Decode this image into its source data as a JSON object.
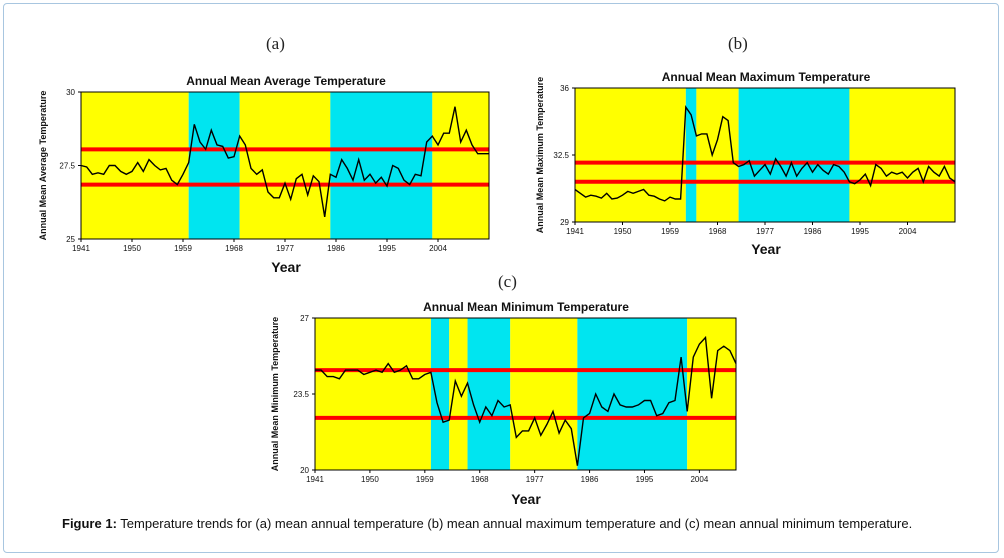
{
  "panel_labels": [
    "(a)",
    "(b)",
    "(c)"
  ],
  "caption": {
    "prefix": "Figure 1:",
    "text": " Temperature trends for (a) mean annual temperature (b) mean annual maximum temperature and (c) mean annual minimum temperature."
  },
  "colors": {
    "band_yellow": "#ffff00",
    "band_cyan": "#00e5f0",
    "mean_line": "#ff0000",
    "series_line": "#000000"
  },
  "chart_data": [
    {
      "type": "line",
      "title": "Annual Mean Average Temperature",
      "xlabel": "Year",
      "ylabel": "Annual Mean Average Temperature",
      "x_ticks": [
        "1941",
        "1950",
        "1959",
        "1968",
        "1977",
        "1986",
        "1995",
        "2004"
      ],
      "y_ticks": [
        "25",
        "27.5",
        "30"
      ],
      "xlim": [
        1941,
        2013
      ],
      "ylim": [
        25,
        30
      ],
      "grid": false,
      "bands": [
        {
          "from": 1941,
          "to": 1960,
          "color": "yellow"
        },
        {
          "from": 1960,
          "to": 1969,
          "color": "cyan"
        },
        {
          "from": 1969,
          "to": 1985,
          "color": "yellow"
        },
        {
          "from": 1985,
          "to": 2003,
          "color": "cyan"
        },
        {
          "from": 2003,
          "to": 2013,
          "color": "yellow"
        }
      ],
      "hlines": [
        28.05,
        26.85
      ],
      "x": [
        1941,
        1942,
        1943,
        1944,
        1945,
        1946,
        1947,
        1948,
        1949,
        1950,
        1951,
        1952,
        1953,
        1954,
        1955,
        1956,
        1957,
        1958,
        1959,
        1960,
        1961,
        1962,
        1963,
        1964,
        1965,
        1966,
        1967,
        1968,
        1969,
        1970,
        1971,
        1972,
        1973,
        1974,
        1975,
        1976,
        1977,
        1978,
        1979,
        1980,
        1981,
        1982,
        1983,
        1984,
        1985,
        1986,
        1987,
        1988,
        1989,
        1990,
        1991,
        1992,
        1993,
        1994,
        1995,
        1996,
        1997,
        1998,
        1999,
        2000,
        2001,
        2002,
        2003,
        2004,
        2005,
        2006,
        2007,
        2008,
        2009,
        2010,
        2011,
        2012,
        2013
      ],
      "values": [
        27.5,
        27.45,
        27.2,
        27.25,
        27.2,
        27.5,
        27.5,
        27.3,
        27.2,
        27.3,
        27.6,
        27.3,
        27.7,
        27.5,
        27.35,
        27.4,
        27.0,
        26.85,
        27.2,
        27.6,
        28.9,
        28.3,
        28.05,
        28.7,
        28.2,
        28.15,
        27.75,
        27.8,
        28.5,
        28.2,
        27.4,
        27.2,
        27.35,
        26.6,
        26.4,
        26.4,
        26.9,
        26.35,
        27.05,
        27.2,
        26.5,
        27.15,
        26.95,
        25.75,
        27.2,
        27.1,
        27.7,
        27.4,
        27.0,
        27.7,
        27.0,
        27.2,
        26.9,
        27.1,
        26.8,
        27.5,
        27.4,
        27.0,
        26.85,
        27.2,
        27.15,
        28.3,
        28.5,
        28.2,
        28.6,
        28.6,
        29.5,
        28.3,
        28.7,
        28.2,
        27.9,
        27.9,
        27.9
      ]
    },
    {
      "type": "line",
      "title": "Annual Mean Maximum Temperature",
      "xlabel": "Year",
      "ylabel": "Annual Mean Maximum Temperature",
      "x_ticks": [
        "1941",
        "1950",
        "1959",
        "1968",
        "1977",
        "1986",
        "1995",
        "2004"
      ],
      "y_ticks": [
        "29",
        "32.5",
        "36"
      ],
      "xlim": [
        1941,
        2013
      ],
      "ylim": [
        29,
        36
      ],
      "grid": false,
      "bands": [
        {
          "from": 1941,
          "to": 1962,
          "color": "yellow"
        },
        {
          "from": 1962,
          "to": 1964,
          "color": "cyan"
        },
        {
          "from": 1964,
          "to": 1972,
          "color": "yellow"
        },
        {
          "from": 1972,
          "to": 1993,
          "color": "cyan"
        },
        {
          "from": 1993,
          "to": 2013,
          "color": "yellow"
        }
      ],
      "hlines": [
        32.1,
        31.1
      ],
      "x": [
        1941,
        1942,
        1943,
        1944,
        1945,
        1946,
        1947,
        1948,
        1949,
        1950,
        1951,
        1952,
        1953,
        1954,
        1955,
        1956,
        1957,
        1958,
        1959,
        1960,
        1961,
        1962,
        1963,
        1964,
        1965,
        1966,
        1967,
        1968,
        1969,
        1970,
        1971,
        1972,
        1973,
        1974,
        1975,
        1976,
        1977,
        1978,
        1979,
        1980,
        1981,
        1982,
        1983,
        1984,
        1985,
        1986,
        1987,
        1988,
        1989,
        1990,
        1991,
        1992,
        1993,
        1994,
        1995,
        1996,
        1997,
        1998,
        1999,
        2000,
        2001,
        2002,
        2003,
        2004,
        2005,
        2006,
        2007,
        2008,
        2009,
        2010,
        2011,
        2012,
        2013
      ],
      "values": [
        30.7,
        30.5,
        30.3,
        30.4,
        30.35,
        30.25,
        30.5,
        30.2,
        30.25,
        30.4,
        30.6,
        30.5,
        30.6,
        30.7,
        30.4,
        30.35,
        30.2,
        30.1,
        30.3,
        30.2,
        30.2,
        35.0,
        34.6,
        33.5,
        33.6,
        33.6,
        32.5,
        33.3,
        34.5,
        34.3,
        32.1,
        31.9,
        32.0,
        32.2,
        31.4,
        31.7,
        32.0,
        31.5,
        32.3,
        31.9,
        31.4,
        32.1,
        31.4,
        31.8,
        32.1,
        31.6,
        32.0,
        31.7,
        31.5,
        32.0,
        31.9,
        31.6,
        31.1,
        31.0,
        31.2,
        31.5,
        30.9,
        32.0,
        31.8,
        31.4,
        31.6,
        31.5,
        31.6,
        31.3,
        31.6,
        31.8,
        31.1,
        31.9,
        31.6,
        31.4,
        31.9,
        31.3,
        31.1
      ]
    },
    {
      "type": "line",
      "title": "Annual Mean Minimum Temperature",
      "xlabel": "Year",
      "ylabel": "Annual Mean Minimum Temperature",
      "x_ticks": [
        "1941",
        "1950",
        "1959",
        "1968",
        "1977",
        "1986",
        "1995",
        "2004"
      ],
      "y_ticks": [
        "20",
        "23.5",
        "27"
      ],
      "xlim": [
        1941,
        2010
      ],
      "ylim": [
        20,
        27
      ],
      "grid": false,
      "bands": [
        {
          "from": 1941,
          "to": 1960,
          "color": "yellow"
        },
        {
          "from": 1960,
          "to": 1963,
          "color": "cyan"
        },
        {
          "from": 1963,
          "to": 1966,
          "color": "yellow"
        },
        {
          "from": 1966,
          "to": 1973,
          "color": "cyan"
        },
        {
          "from": 1973,
          "to": 1984,
          "color": "yellow"
        },
        {
          "from": 1984,
          "to": 2002,
          "color": "cyan"
        },
        {
          "from": 2002,
          "to": 2010,
          "color": "yellow"
        }
      ],
      "hlines": [
        24.6,
        22.4
      ],
      "x": [
        1941,
        1942,
        1943,
        1944,
        1945,
        1946,
        1947,
        1948,
        1949,
        1950,
        1951,
        1952,
        1953,
        1954,
        1955,
        1956,
        1957,
        1958,
        1959,
        1960,
        1961,
        1962,
        1963,
        1964,
        1965,
        1966,
        1967,
        1968,
        1969,
        1970,
        1971,
        1972,
        1973,
        1974,
        1975,
        1976,
        1977,
        1978,
        1979,
        1980,
        1981,
        1982,
        1983,
        1984,
        1985,
        1986,
        1987,
        1988,
        1989,
        1990,
        1991,
        1992,
        1993,
        1994,
        1995,
        1996,
        1997,
        1998,
        1999,
        2000,
        2001,
        2002,
        2003,
        2004,
        2005,
        2006,
        2007,
        2008,
        2009,
        2010
      ],
      "values": [
        24.6,
        24.6,
        24.3,
        24.3,
        24.2,
        24.6,
        24.6,
        24.6,
        24.4,
        24.5,
        24.6,
        24.5,
        24.9,
        24.5,
        24.6,
        24.8,
        24.2,
        24.2,
        24.4,
        24.5,
        23.1,
        22.2,
        22.3,
        24.1,
        23.4,
        24.0,
        23.0,
        22.2,
        22.9,
        22.5,
        23.2,
        22.9,
        23.0,
        21.5,
        21.8,
        21.8,
        22.4,
        21.6,
        22.1,
        22.7,
        21.7,
        22.3,
        21.9,
        20.2,
        22.4,
        22.6,
        23.5,
        22.9,
        22.7,
        23.5,
        23.0,
        22.9,
        22.9,
        23.0,
        23.2,
        23.2,
        22.5,
        22.6,
        23.1,
        23.2,
        25.2,
        22.7,
        25.2,
        25.8,
        26.1,
        23.3,
        25.5,
        25.7,
        25.5,
        24.9
      ]
    }
  ]
}
